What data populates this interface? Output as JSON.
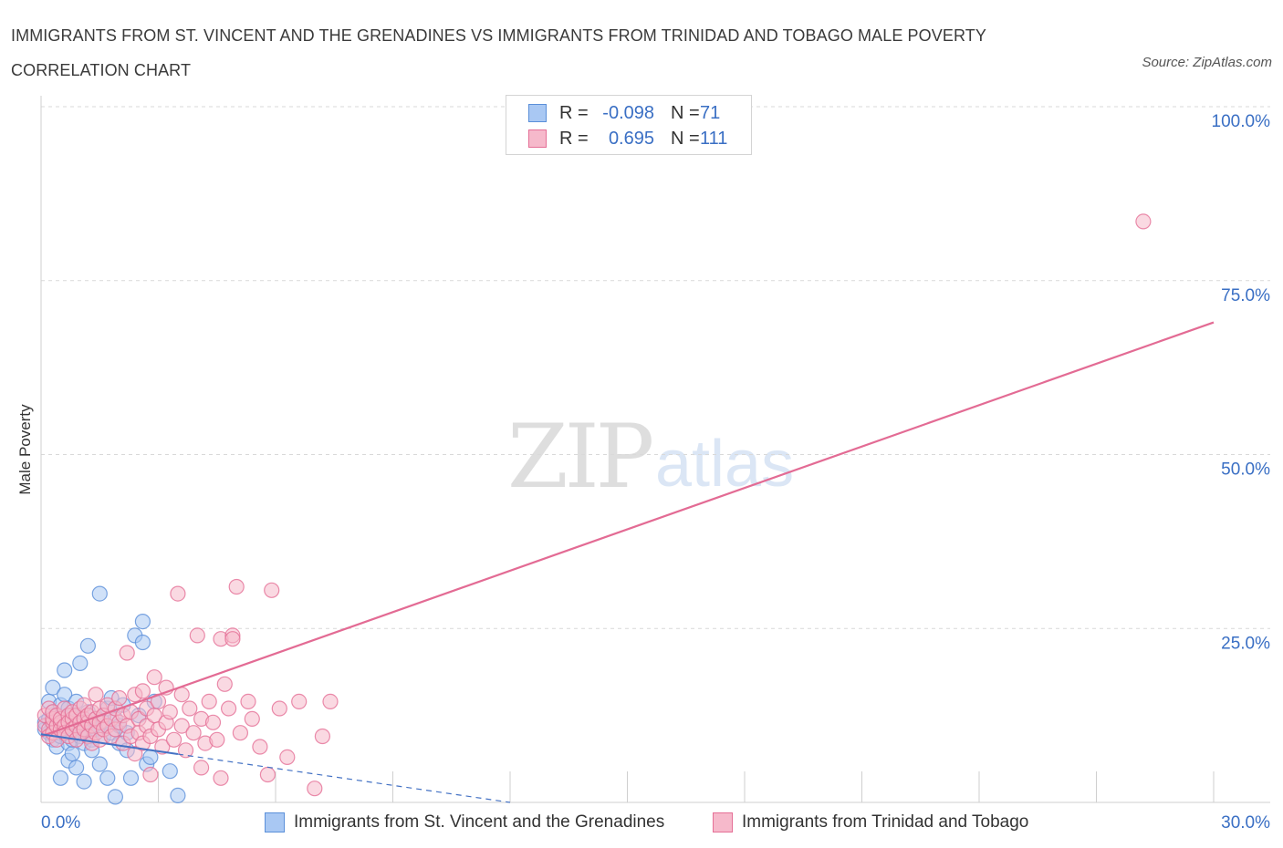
{
  "header": {
    "title": "IMMIGRANTS FROM ST. VINCENT AND THE GRENADINES VS IMMIGRANTS FROM TRINIDAD AND TOBAGO MALE POVERTY CORRELATION CHART",
    "source": "Source: ZipAtlas.com"
  },
  "watermark": {
    "zip": "ZIP",
    "atlas": "atlas"
  },
  "legend": {
    "rows": [
      {
        "r_label": "R =",
        "r_value": "-0.098",
        "n_label": "N =",
        "n_value": "71"
      },
      {
        "r_label": "R =",
        "r_value": "0.695",
        "n_label": "N =",
        "n_value": "111"
      }
    ]
  },
  "colors": {
    "blue_fill": "#a9c8f3",
    "blue_stroke": "#5b8fd9",
    "blue_line": "#4472c4",
    "pink_fill": "#f6b9cb",
    "pink_stroke": "#e56f96",
    "pink_line": "#e36b94",
    "tick_label": "#3a6fc4",
    "grid": "#d9d9d9"
  },
  "chart_data": {
    "type": "scatter",
    "title": "IMMIGRANTS FROM ST. VINCENT AND THE GRENADINES VS IMMIGRANTS FROM TRINIDAD AND TOBAGO MALE POVERTY CORRELATION CHART",
    "xlabel": "",
    "ylabel": "Male Poverty",
    "xlim": [
      0,
      30
    ],
    "ylim": [
      0,
      100
    ],
    "x_tick_labels": [
      "0.0%",
      "30.0%"
    ],
    "y_ticks": [
      25,
      50,
      75,
      100
    ],
    "y_tick_labels": [
      "25.0%",
      "50.0%",
      "75.0%",
      "100.0%"
    ],
    "grid": true,
    "legend_position": "top-center",
    "series": [
      {
        "name": "Immigrants from St. Vincent and the Grenadines",
        "color": "blue",
        "R": -0.098,
        "N": 71,
        "trend": {
          "x": [
            0,
            12
          ],
          "y": [
            9.8,
            0.0
          ],
          "solid_until_x": 3.5
        },
        "points": [
          [
            0.1,
            10.5
          ],
          [
            0.1,
            11.5
          ],
          [
            0.2,
            12.0
          ],
          [
            0.2,
            14.5
          ],
          [
            0.2,
            10.0
          ],
          [
            0.3,
            9.0
          ],
          [
            0.3,
            11.0
          ],
          [
            0.3,
            13.0
          ],
          [
            0.3,
            16.5
          ],
          [
            0.4,
            8.0
          ],
          [
            0.4,
            12.5
          ],
          [
            0.4,
            10.5
          ],
          [
            0.5,
            11.0
          ],
          [
            0.5,
            9.5
          ],
          [
            0.5,
            14.0
          ],
          [
            0.5,
            3.5
          ],
          [
            0.6,
            15.5
          ],
          [
            0.6,
            12.0
          ],
          [
            0.6,
            10.0
          ],
          [
            0.6,
            19.0
          ],
          [
            0.7,
            8.5
          ],
          [
            0.7,
            11.5
          ],
          [
            0.7,
            13.5
          ],
          [
            0.7,
            6.0
          ],
          [
            0.8,
            10.0
          ],
          [
            0.8,
            12.5
          ],
          [
            0.8,
            7.0
          ],
          [
            0.8,
            9.0
          ],
          [
            0.9,
            11.0
          ],
          [
            0.9,
            14.5
          ],
          [
            0.9,
            5.0
          ],
          [
            1.0,
            10.5
          ],
          [
            1.0,
            12.0
          ],
          [
            1.0,
            9.5
          ],
          [
            1.0,
            20.0
          ],
          [
            1.1,
            8.5
          ],
          [
            1.1,
            11.5
          ],
          [
            1.1,
            3.0
          ],
          [
            1.2,
            10.0
          ],
          [
            1.2,
            22.5
          ],
          [
            1.2,
            13.0
          ],
          [
            1.3,
            9.0
          ],
          [
            1.3,
            11.0
          ],
          [
            1.3,
            7.5
          ],
          [
            1.4,
            12.0
          ],
          [
            1.4,
            10.5
          ],
          [
            1.5,
            30.0
          ],
          [
            1.5,
            5.5
          ],
          [
            1.6,
            11.5
          ],
          [
            1.6,
            9.5
          ],
          [
            1.7,
            13.5
          ],
          [
            1.7,
            3.5
          ],
          [
            1.8,
            10.0
          ],
          [
            1.8,
            15.0
          ],
          [
            1.9,
            12.0
          ],
          [
            1.9,
            0.8
          ],
          [
            2.0,
            8.5
          ],
          [
            2.0,
            11.0
          ],
          [
            2.1,
            14.0
          ],
          [
            2.2,
            10.0
          ],
          [
            2.2,
            7.5
          ],
          [
            2.3,
            3.5
          ],
          [
            2.4,
            24.0
          ],
          [
            2.5,
            12.5
          ],
          [
            2.6,
            26.0
          ],
          [
            2.6,
            23.0
          ],
          [
            2.7,
            5.5
          ],
          [
            2.8,
            6.5
          ],
          [
            2.9,
            14.5
          ],
          [
            3.3,
            4.5
          ],
          [
            3.5,
            1.0
          ]
        ]
      },
      {
        "name": "Immigrants from Trinidad and Tobago",
        "color": "pink",
        "R": 0.695,
        "N": 111,
        "trend": {
          "x": [
            0,
            30
          ],
          "y": [
            9.5,
            69.0
          ]
        },
        "points": [
          [
            0.1,
            11.0
          ],
          [
            0.1,
            12.5
          ],
          [
            0.2,
            10.5
          ],
          [
            0.2,
            13.5
          ],
          [
            0.2,
            9.5
          ],
          [
            0.3,
            11.5
          ],
          [
            0.3,
            12.0
          ],
          [
            0.3,
            10.0
          ],
          [
            0.3,
            13.0
          ],
          [
            0.4,
            11.0
          ],
          [
            0.4,
            12.5
          ],
          [
            0.4,
            9.0
          ],
          [
            0.5,
            11.5
          ],
          [
            0.5,
            10.5
          ],
          [
            0.5,
            12.0
          ],
          [
            0.6,
            13.5
          ],
          [
            0.6,
            11.0
          ],
          [
            0.6,
            10.0
          ],
          [
            0.7,
            12.5
          ],
          [
            0.7,
            11.5
          ],
          [
            0.7,
            9.5
          ],
          [
            0.8,
            12.0
          ],
          [
            0.8,
            10.5
          ],
          [
            0.8,
            13.0
          ],
          [
            0.9,
            11.0
          ],
          [
            0.9,
            12.5
          ],
          [
            0.9,
            9.0
          ],
          [
            1.0,
            11.5
          ],
          [
            1.0,
            13.5
          ],
          [
            1.0,
            10.0
          ],
          [
            1.1,
            12.0
          ],
          [
            1.1,
            10.5
          ],
          [
            1.1,
            14.0
          ],
          [
            1.2,
            11.5
          ],
          [
            1.2,
            9.5
          ],
          [
            1.2,
            12.5
          ],
          [
            1.3,
            11.0
          ],
          [
            1.3,
            13.0
          ],
          [
            1.3,
            8.5
          ],
          [
            1.4,
            12.0
          ],
          [
            1.4,
            10.0
          ],
          [
            1.4,
            15.5
          ],
          [
            1.5,
            11.5
          ],
          [
            1.5,
            13.5
          ],
          [
            1.5,
            9.0
          ],
          [
            1.6,
            12.5
          ],
          [
            1.6,
            10.5
          ],
          [
            1.7,
            14.0
          ],
          [
            1.7,
            11.0
          ],
          [
            1.8,
            12.0
          ],
          [
            1.8,
            9.5
          ],
          [
            1.9,
            13.5
          ],
          [
            1.9,
            10.5
          ],
          [
            2.0,
            15.0
          ],
          [
            2.0,
            11.5
          ],
          [
            2.1,
            12.5
          ],
          [
            2.1,
            8.5
          ],
          [
            2.2,
            21.5
          ],
          [
            2.2,
            11.0
          ],
          [
            2.3,
            13.0
          ],
          [
            2.3,
            9.5
          ],
          [
            2.4,
            15.5
          ],
          [
            2.4,
            7.0
          ],
          [
            2.5,
            12.0
          ],
          [
            2.5,
            10.0
          ],
          [
            2.6,
            16.0
          ],
          [
            2.6,
            8.5
          ],
          [
            2.7,
            13.5
          ],
          [
            2.7,
            11.0
          ],
          [
            2.8,
            9.5
          ],
          [
            2.8,
            4.0
          ],
          [
            2.9,
            18.0
          ],
          [
            2.9,
            12.5
          ],
          [
            3.0,
            14.5
          ],
          [
            3.0,
            10.5
          ],
          [
            3.1,
            8.0
          ],
          [
            3.2,
            16.5
          ],
          [
            3.2,
            11.5
          ],
          [
            3.3,
            13.0
          ],
          [
            3.4,
            9.0
          ],
          [
            3.5,
            30.0
          ],
          [
            3.6,
            15.5
          ],
          [
            3.6,
            11.0
          ],
          [
            3.7,
            7.5
          ],
          [
            3.8,
            13.5
          ],
          [
            3.9,
            10.0
          ],
          [
            4.0,
            24.0
          ],
          [
            4.1,
            12.0
          ],
          [
            4.1,
            5.0
          ],
          [
            4.2,
            8.5
          ],
          [
            4.3,
            14.5
          ],
          [
            4.4,
            11.5
          ],
          [
            4.5,
            9.0
          ],
          [
            4.6,
            23.5
          ],
          [
            4.6,
            3.5
          ],
          [
            4.7,
            17.0
          ],
          [
            4.8,
            13.5
          ],
          [
            4.9,
            24.0
          ],
          [
            4.9,
            23.5
          ],
          [
            5.0,
            31.0
          ],
          [
            5.1,
            10.0
          ],
          [
            5.3,
            14.5
          ],
          [
            5.4,
            12.0
          ],
          [
            5.6,
            8.0
          ],
          [
            5.8,
            4.0
          ],
          [
            5.9,
            30.5
          ],
          [
            6.1,
            13.5
          ],
          [
            6.3,
            6.5
          ],
          [
            6.6,
            14.5
          ],
          [
            7.0,
            2.0
          ],
          [
            7.2,
            9.5
          ],
          [
            7.4,
            14.5
          ],
          [
            28.2,
            83.5
          ]
        ]
      }
    ]
  },
  "bottom_legend": [
    {
      "label": "Immigrants from St. Vincent and the Grenadines"
    },
    {
      "label": "Immigrants from Trinidad and Tobago"
    }
  ]
}
